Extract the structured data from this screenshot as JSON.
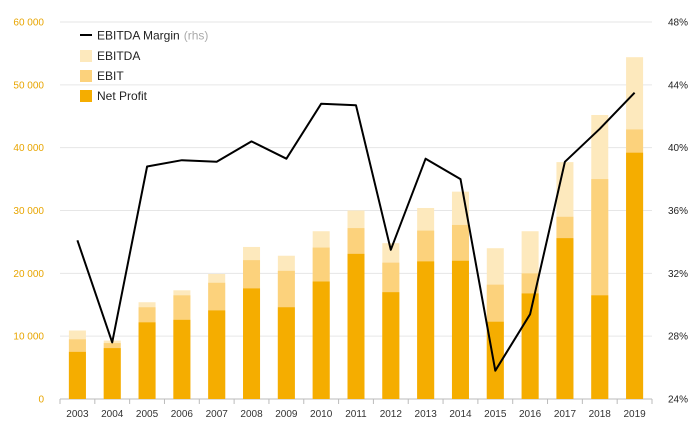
{
  "chart_data": {
    "type": "bar",
    "categories": [
      "2003",
      "2004",
      "2005",
      "2006",
      "2007",
      "2008",
      "2009",
      "2010",
      "2011",
      "2012",
      "2013",
      "2014",
      "2015",
      "2016",
      "2017",
      "2018",
      "2019"
    ],
    "series": [
      {
        "name": "Net Profit",
        "kind": "bar",
        "axis": "left",
        "color": "#f5ad00",
        "values": [
          7500,
          8100,
          12200,
          12600,
          14100,
          17600,
          14600,
          18700,
          23100,
          17000,
          21900,
          22000,
          12300,
          16800,
          25600,
          16500,
          39200
        ]
      },
      {
        "name": "EBIT",
        "kind": "bar",
        "axis": "left",
        "color": "#fcd27c",
        "values": [
          9500,
          8900,
          14600,
          16500,
          18500,
          22100,
          20400,
          24100,
          27200,
          21700,
          26800,
          27700,
          18200,
          20000,
          29000,
          35000,
          42900
        ]
      },
      {
        "name": "EBITDA",
        "kind": "bar",
        "axis": "left",
        "color": "#fde9bd",
        "values": [
          10900,
          9300,
          15400,
          17300,
          19900,
          24200,
          22800,
          26700,
          30000,
          24800,
          30400,
          33000,
          24000,
          26700,
          37700,
          45200,
          54400
        ]
      },
      {
        "name": "EBITDA Margin",
        "note": "(rhs)",
        "kind": "line",
        "axis": "right",
        "color": "#000000",
        "values": [
          34.1,
          27.6,
          38.8,
          39.2,
          39.1,
          40.4,
          39.3,
          42.8,
          42.7,
          33.5,
          39.3,
          38.0,
          25.8,
          29.4,
          39.1,
          41.2,
          43.5
        ]
      }
    ],
    "left_axis": {
      "min": 0,
      "max": 60000,
      "ticks": [
        "0",
        "10 000",
        "20 000",
        "30 000",
        "40 000",
        "50 000",
        "60 000"
      ],
      "color": "#e8a500"
    },
    "right_axis": {
      "min": 24,
      "max": 48,
      "ticks": [
        "24%",
        "28%",
        "32%",
        "36%",
        "40%",
        "44%",
        "48%"
      ]
    },
    "grid": true,
    "legend_position": "top-left"
  }
}
